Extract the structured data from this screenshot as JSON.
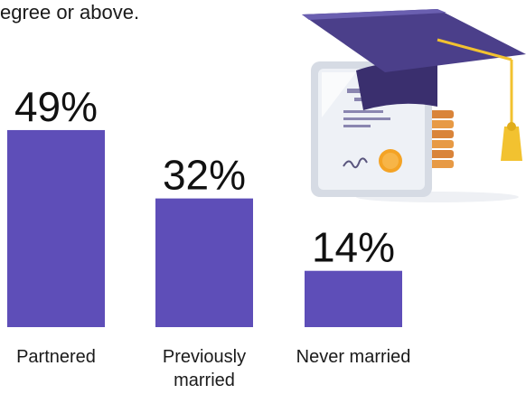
{
  "header": {
    "text_fragment": "egree or above."
  },
  "chart_data": {
    "type": "bar",
    "title": "",
    "xlabel": "",
    "ylabel": "",
    "ylim": [
      0,
      60
    ],
    "grid": false,
    "categories": [
      "Partnered",
      "Previously married",
      "Never married"
    ],
    "category_lines": [
      [
        "Partnered"
      ],
      [
        "Previously",
        "married"
      ],
      [
        "Never married"
      ]
    ],
    "values": [
      49,
      32,
      14
    ],
    "value_labels": [
      "49%",
      "32%",
      "14%"
    ],
    "bar_color": "#5e4eb8"
  },
  "illustration": {
    "icon": "graduation-cap-diploma-icon",
    "colors": {
      "cap": "#3a2f6e",
      "cap_top": "#4b3f8a",
      "tassel": "#f2c230",
      "diploma": "#e9edf3",
      "seal": "#f4a325",
      "coins": "#d9843a"
    }
  }
}
